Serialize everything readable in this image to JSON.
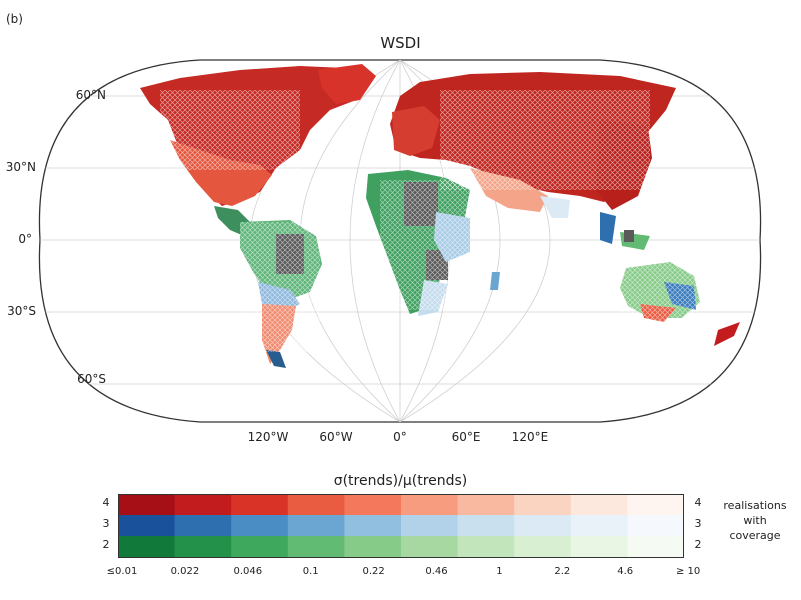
{
  "panel_label": "(b)",
  "title": "WSDI",
  "lat_labels": [
    "60°N",
    "30°N",
    "0°",
    "30°S",
    "60°S"
  ],
  "lon_labels": [
    "120°W",
    "60°W",
    "0°",
    "60°E",
    "120°E"
  ],
  "colorbar": {
    "title": "σ(trends)/μ(trends)",
    "tick_labels": [
      "≤0.01",
      "0.022",
      "0.046",
      "0.1",
      "0.22",
      "0.46",
      "1",
      "2.2",
      "4.6",
      "≥ 10"
    ],
    "row_labels_left": [
      "4",
      "3",
      "2"
    ],
    "row_labels_right": [
      "4",
      "3",
      "2"
    ],
    "side_label_lines": [
      "realisations",
      "with",
      "coverage"
    ],
    "rows": [
      {
        "realisations": "4",
        "colors": [
          "#a50f15",
          "#c21c1f",
          "#d93327",
          "#ea5c42",
          "#f4795c",
          "#f79c7e",
          "#f9b9a0",
          "#fbd3c1",
          "#fde8dd",
          "#fff5f0"
        ]
      },
      {
        "realisations": "3",
        "colors": [
          "#1a519b",
          "#2e6fb0",
          "#4a8cc4",
          "#6ba5d2",
          "#91bfdf",
          "#b1d2e8",
          "#c9e0ef",
          "#dbeaf4",
          "#e9f2f9",
          "#f5f9fd"
        ]
      },
      {
        "realisations": "2",
        "colors": [
          "#117a3a",
          "#24914b",
          "#3ea95c",
          "#62bb72",
          "#87cb89",
          "#a7d8a2",
          "#c3e5bb",
          "#d8efd2",
          "#e8f6e3",
          "#f5fbf2"
        ]
      }
    ]
  }
}
